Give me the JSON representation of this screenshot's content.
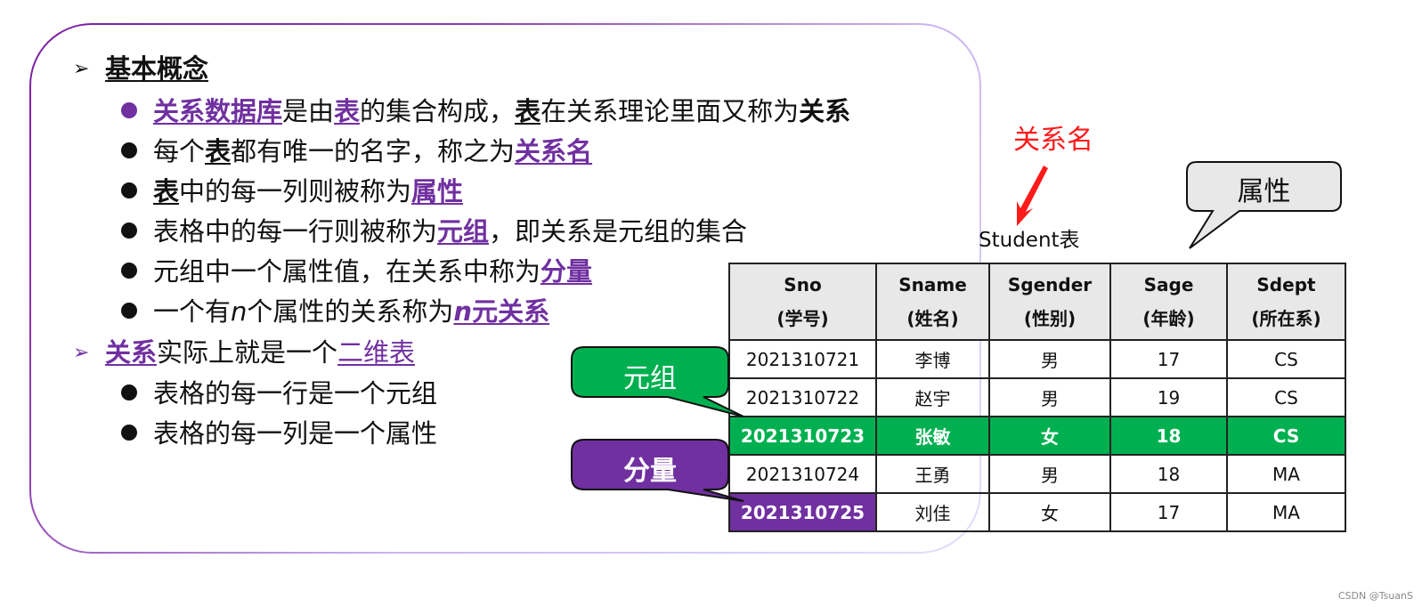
{
  "concepts": {
    "heading": "基本概念",
    "b1": {
      "s1": "关系数据库",
      "s2": "是由",
      "s3": "表",
      "s4": "的集合构成，",
      "s5": "表",
      "s6": "在关系理论里面又称为",
      "s7": "关系"
    },
    "b2": {
      "s1": "每个",
      "s2": "表",
      "s3": "都有唯一的名字，称之为",
      "s4": "关系名"
    },
    "b3": {
      "s1": "表",
      "s2": "中的每一列则被称为",
      "s3": "属性"
    },
    "b4": {
      "s1": "表格中的每一行则被称为",
      "s2": "元组",
      "s3": "，即关系是元组的集合"
    },
    "b5": {
      "s1": "元组中一个属性值，在关系中称为",
      "s2": "分量"
    },
    "b6": {
      "s1": "一个有",
      "s2": "n",
      "s3": "个属性的关系称为",
      "s4": "n",
      "s5": "元关系"
    }
  },
  "relation": {
    "h1": "关系",
    "h2": "实际上就是一个",
    "h3": "二维表",
    "sub1": "表格的每一行是一个元组",
    "sub2": "表格的每一列是一个属性"
  },
  "diagram": {
    "relation_name_label": "关系名",
    "table_name": "Student表",
    "attribute_label": "属性",
    "tuple_label": "元组",
    "component_label": "分量",
    "colors": {
      "purple": "#7030a0",
      "green": "#00b050",
      "red": "#ff1a1a"
    }
  },
  "table": {
    "headers": [
      {
        "en": "Sno",
        "cn": "(学号)"
      },
      {
        "en": "Sname",
        "cn": "(姓名)"
      },
      {
        "en": "Sgender",
        "cn": "(性别)"
      },
      {
        "en": "Sage",
        "cn": "(年龄)"
      },
      {
        "en": "Sdept",
        "cn": "(所在系)"
      }
    ],
    "rows": [
      [
        "2021310721",
        "李博",
        "男",
        "17",
        "CS"
      ],
      [
        "2021310722",
        "赵宇",
        "男",
        "19",
        "CS"
      ],
      [
        "2021310723",
        "张敏",
        "女",
        "18",
        "CS"
      ],
      [
        "2021310724",
        "王勇",
        "男",
        "18",
        "MA"
      ],
      [
        "2021310725",
        "刘佳",
        "女",
        "17",
        "MA"
      ]
    ]
  },
  "watermark": "CSDN @TsuanS"
}
